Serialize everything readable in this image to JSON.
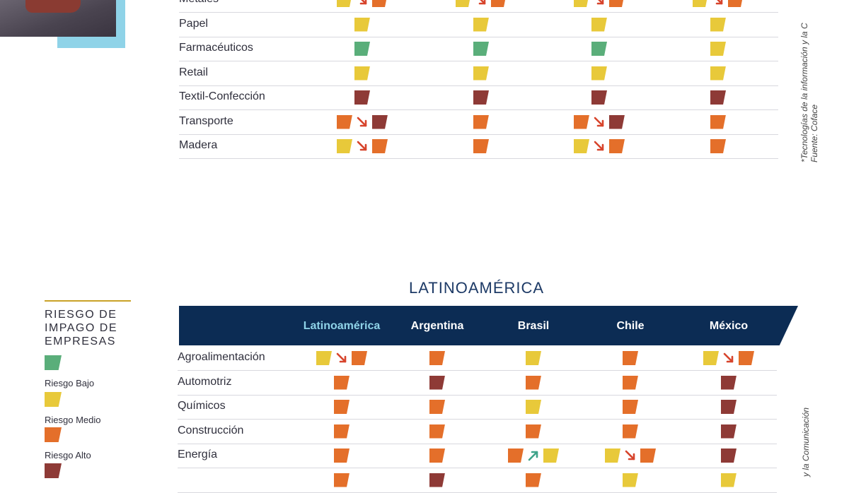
{
  "colors": {
    "low": "#5aae7a",
    "medium": "#e8c93a",
    "high": "#e46f2a",
    "very_high": "#8e3a36",
    "down": "#d7442c",
    "up": "#3ea38a"
  },
  "top_table": {
    "rows": [
      {
        "label": "Metales",
        "cells": [
          [
            "medium",
            "down",
            "high"
          ],
          [
            "medium",
            "down",
            "high"
          ],
          [
            "medium",
            "down",
            "high"
          ],
          [
            "medium",
            "down",
            "high"
          ]
        ]
      },
      {
        "label": "Papel",
        "cells": [
          [
            "medium"
          ],
          [
            "medium"
          ],
          [
            "medium"
          ],
          [
            "medium"
          ]
        ]
      },
      {
        "label": "Farmacéuticos",
        "cells": [
          [
            "low"
          ],
          [
            "low"
          ],
          [
            "low"
          ],
          [
            "medium"
          ]
        ]
      },
      {
        "label": "Retail",
        "cells": [
          [
            "medium"
          ],
          [
            "medium"
          ],
          [
            "medium"
          ],
          [
            "medium"
          ]
        ]
      },
      {
        "label": "Textil-Confección",
        "cells": [
          [
            "very_high"
          ],
          [
            "very_high"
          ],
          [
            "very_high"
          ],
          [
            "very_high"
          ]
        ]
      },
      {
        "label": "Transporte",
        "cells": [
          [
            "high",
            "down",
            "very_high"
          ],
          [
            "high"
          ],
          [
            "high",
            "down",
            "very_high"
          ],
          [
            "high"
          ]
        ]
      },
      {
        "label": "Madera",
        "cells": [
          [
            "medium",
            "down",
            "high"
          ],
          [
            "high"
          ],
          [
            "medium",
            "down",
            "high"
          ],
          [
            "high"
          ]
        ]
      }
    ]
  },
  "side_notes": {
    "top_line1": "*Tecnologías de la información y la C",
    "top_line2": "Fuente: Coface",
    "bottom_line1": "y la Comunicación"
  },
  "latam": {
    "title": "LATINOAMÉRICA",
    "headers": [
      "Latinoamérica",
      "Argentina",
      "Brasil",
      "Chile",
      "México"
    ],
    "rows": [
      {
        "label": "Agroalimentación",
        "cells": [
          [
            "medium",
            "down",
            "high"
          ],
          [
            "high"
          ],
          [
            "medium"
          ],
          [
            "high"
          ],
          [
            "medium",
            "down",
            "high"
          ]
        ]
      },
      {
        "label": "Automotriz",
        "cells": [
          [
            "high"
          ],
          [
            "very_high"
          ],
          [
            "high"
          ],
          [
            "high"
          ],
          [
            "very_high"
          ]
        ]
      },
      {
        "label": "Químicos",
        "cells": [
          [
            "high"
          ],
          [
            "high"
          ],
          [
            "medium"
          ],
          [
            "high"
          ],
          [
            "very_high"
          ]
        ]
      },
      {
        "label": "Construcción",
        "cells": [
          [
            "high"
          ],
          [
            "high"
          ],
          [
            "high"
          ],
          [
            "high"
          ],
          [
            "very_high"
          ]
        ]
      },
      {
        "label": "Energía",
        "cells": [
          [
            "high"
          ],
          [
            "high"
          ],
          [
            "high",
            "up",
            "medium"
          ],
          [
            "medium",
            "down",
            "high"
          ],
          [
            "very_high"
          ]
        ]
      },
      {
        "label": "",
        "cells": [
          [
            "high"
          ],
          [
            "very_high"
          ],
          [
            "high"
          ],
          [
            "medium"
          ],
          [
            "medium"
          ]
        ]
      }
    ]
  },
  "legend": {
    "title": "RIESGO DE IMPAGO DE EMPRESAS",
    "items": [
      {
        "key": "low",
        "label": "Riesgo Bajo"
      },
      {
        "key": "medium",
        "label": "Riesgo Medio"
      },
      {
        "key": "high",
        "label": "Riesgo Alto"
      },
      {
        "key": "very_high",
        "label": ""
      }
    ]
  }
}
